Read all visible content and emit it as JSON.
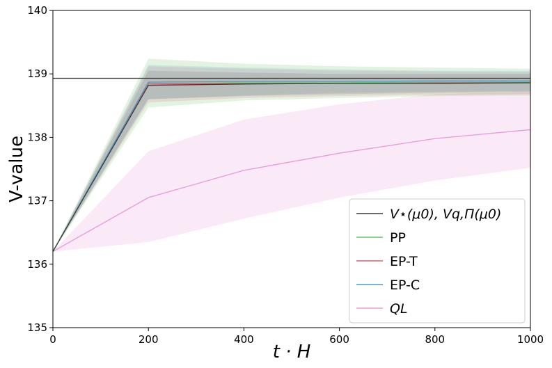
{
  "chart_data": {
    "type": "line",
    "xlabel": "t · H",
    "ylabel": "V-value",
    "xlim": [
      0,
      1000
    ],
    "ylim": [
      135,
      140
    ],
    "xticks": [
      0,
      200,
      400,
      600,
      800,
      1000
    ],
    "yticks": [
      135,
      136,
      137,
      138,
      139,
      140
    ],
    "x": [
      0,
      200,
      400,
      600,
      800,
      1000
    ],
    "reference_line": {
      "y": 138.93,
      "color": "#3a3a3a"
    },
    "legend_position": "lower-right",
    "grid": false,
    "series": [
      {
        "key": "vstar",
        "name": "V⋆(μ0), Vq,Π(μ0)",
        "color": "#3a3a3a",
        "values": [
          136.2,
          138.82,
          138.84,
          138.85,
          138.85,
          138.86
        ],
        "band_lower": [
          136.2,
          138.6,
          138.65,
          138.68,
          138.7,
          138.72
        ],
        "band_upper": [
          136.2,
          139.05,
          139.02,
          139.0,
          139.0,
          139.0
        ]
      },
      {
        "key": "pp",
        "name": "PP",
        "color": "#6cc46c",
        "values": [
          136.2,
          138.85,
          138.86,
          138.86,
          138.87,
          138.87
        ],
        "band_lower": [
          136.2,
          138.47,
          138.58,
          138.62,
          138.65,
          138.66
        ],
        "band_upper": [
          136.2,
          139.24,
          139.16,
          139.12,
          139.1,
          139.08
        ]
      },
      {
        "key": "ept",
        "name": "EP-T",
        "color": "#d9606a",
        "values": [
          136.2,
          138.84,
          138.85,
          138.85,
          138.86,
          138.86
        ],
        "band_lower": [
          136.2,
          138.55,
          138.62,
          138.65,
          138.67,
          138.68
        ],
        "band_upper": [
          136.2,
          139.12,
          139.08,
          139.05,
          139.04,
          139.03
        ]
      },
      {
        "key": "epc",
        "name": "EP-C",
        "color": "#4f9bc7",
        "values": [
          136.2,
          138.87,
          138.88,
          138.88,
          138.89,
          138.89
        ],
        "band_lower": [
          136.2,
          138.6,
          138.66,
          138.7,
          138.72,
          138.73
        ],
        "band_upper": [
          136.2,
          139.14,
          139.1,
          139.07,
          139.05,
          139.05
        ]
      },
      {
        "key": "ql",
        "name": "QL",
        "color": "#e89ad8",
        "values": [
          136.2,
          137.05,
          137.48,
          137.75,
          137.98,
          138.12
        ],
        "band_lower": [
          136.2,
          136.35,
          136.72,
          137.05,
          137.32,
          137.52
        ],
        "band_upper": [
          136.2,
          137.78,
          138.28,
          138.52,
          138.68,
          138.72
        ]
      }
    ]
  }
}
